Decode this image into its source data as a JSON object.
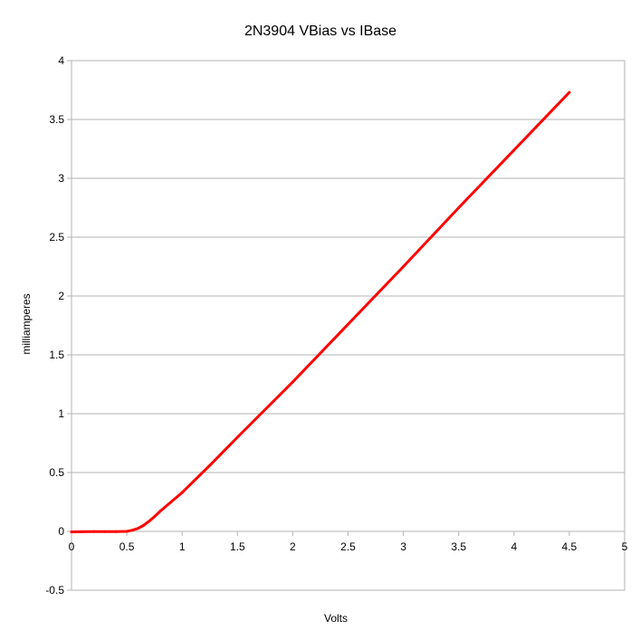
{
  "chart_data": {
    "type": "line",
    "title": "2N3904 VBias vs IBase",
    "xlabel": "Volts",
    "ylabel": "milliamperes",
    "xlim": [
      0,
      5
    ],
    "ylim": [
      -0.5,
      4
    ],
    "x_ticks": [
      "0",
      "0.5",
      "1",
      "1.5",
      "2",
      "2.5",
      "3",
      "3.5",
      "4",
      "4.5",
      "5"
    ],
    "y_ticks": [
      "-0.5",
      "0",
      "0.5",
      "1",
      "1.5",
      "2",
      "2.5",
      "3",
      "3.5",
      "4"
    ],
    "grid": "horizontal",
    "legend": "none",
    "series": [
      {
        "color": "#ff0000",
        "x": [
          0,
          0.1,
          0.2,
          0.3,
          0.4,
          0.5,
          0.55,
          0.6,
          0.65,
          0.7,
          0.75,
          0.8,
          0.9,
          1.0,
          1.25,
          1.5,
          2.0,
          2.5,
          3.0,
          3.5,
          4.0,
          4.5
        ],
        "y": [
          -0.005,
          -0.003,
          -0.002,
          -0.002,
          -0.002,
          0.0,
          0.01,
          0.025,
          0.05,
          0.085,
          0.125,
          0.17,
          0.25,
          0.33,
          0.56,
          0.8,
          1.27,
          1.76,
          2.25,
          2.75,
          3.24,
          3.73
        ]
      }
    ]
  }
}
